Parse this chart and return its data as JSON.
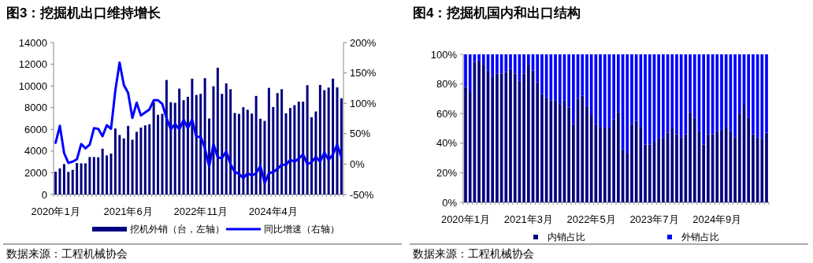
{
  "chart_data": [
    {
      "type": "bar",
      "title": "图3：挖掘机出口维持增长",
      "annotations": [
        "数据来源：工程机械协会"
      ],
      "categories": [
        "2020年1月",
        null,
        null,
        null,
        null,
        null,
        null,
        null,
        null,
        null,
        null,
        null,
        null,
        null,
        null,
        null,
        null,
        "2021年6月",
        null,
        null,
        null,
        null,
        null,
        null,
        null,
        null,
        null,
        null,
        null,
        null,
        null,
        null,
        null,
        null,
        "2022年11月",
        null,
        null,
        null,
        null,
        null,
        null,
        null,
        null,
        null,
        null,
        null,
        null,
        null,
        null,
        null,
        null,
        "2024年4月",
        null,
        null,
        null,
        null,
        null,
        null,
        null,
        null,
        null,
        null,
        null,
        null,
        null,
        null,
        null,
        null
      ],
      "series": [
        {
          "name": "挖机外销（台，左轴）",
          "color": "#000080",
          "values": [
            2100,
            2400,
            2800,
            2080,
            2270,
            2900,
            2870,
            2870,
            3450,
            3450,
            3430,
            4220,
            3600,
            3770,
            6080,
            5480,
            5170,
            6320,
            5050,
            5770,
            6160,
            6370,
            6470,
            8500,
            7340,
            7430,
            10550,
            8500,
            8450,
            9750,
            8690,
            9000,
            10670,
            9170,
            9270,
            10720,
            7000,
            9970,
            11680,
            9270,
            10240,
            9700,
            7510,
            7430,
            8040,
            7800,
            7460,
            9080,
            6980,
            6780,
            9820,
            8060,
            9340,
            9700,
            7480,
            7970,
            8230,
            8550,
            8550,
            10070,
            7120,
            7650,
            10090,
            9610,
            9850,
            10670,
            9870,
            8860
          ]
        },
        {
          "name": "同比增速（右轴）",
          "type": "line",
          "axis": "y2",
          "color": "#0000ff",
          "values": [
            35,
            63,
            18,
            2,
            4,
            8,
            33,
            26,
            32,
            59,
            58,
            46,
            64,
            58,
            121,
            167,
            130,
            117,
            76,
            101,
            80,
            85,
            90,
            105,
            105,
            99,
            76,
            57,
            66,
            57,
            73,
            59,
            73,
            45,
            45,
            26,
            -4,
            33,
            11,
            10,
            21,
            0,
            -13,
            -16,
            -23,
            -15,
            -19,
            -15,
            -3,
            -31,
            -15,
            -13,
            -8,
            -1,
            -1,
            7,
            4,
            9,
            16,
            0,
            3,
            12,
            4,
            19,
            7,
            16,
            32,
            11
          ]
        }
      ],
      "ylim": [
        0,
        14000
      ],
      "yticks": [
        0,
        2000,
        4000,
        6000,
        8000,
        10000,
        12000,
        14000
      ],
      "y2lim": [
        -50,
        200
      ],
      "y2ticks": [
        {
          "value": -50,
          "label": "-50%"
        },
        {
          "value": 0,
          "label": "0%"
        },
        {
          "value": 50,
          "label": "50%"
        },
        {
          "value": 100,
          "label": "100%"
        },
        {
          "value": 150,
          "label": "150%"
        },
        {
          "value": 200,
          "label": "200%"
        }
      ],
      "legend": "bottom",
      "marker": "none",
      "line_style": "solid"
    },
    {
      "type": "bar",
      "title": "图4：挖掘机国内和出口结构",
      "annotations": [
        "数据来源：工程机械协会"
      ],
      "stacked": true,
      "categories": [
        "2020年1月",
        null,
        null,
        null,
        null,
        null,
        null,
        null,
        null,
        null,
        null,
        null,
        null,
        null,
        "2021年3月",
        null,
        null,
        null,
        null,
        null,
        null,
        null,
        null,
        null,
        null,
        null,
        null,
        null,
        "2022年5月",
        null,
        null,
        null,
        null,
        null,
        null,
        null,
        null,
        null,
        null,
        null,
        null,
        null,
        "2023年7月",
        null,
        null,
        null,
        null,
        null,
        null,
        null,
        null,
        null,
        null,
        null,
        null,
        null,
        "2024年9月",
        null,
        null,
        null,
        null,
        null,
        null,
        null,
        null,
        null,
        null,
        null
      ],
      "series": [
        {
          "name": "内销占比",
          "color": "#000080",
          "values": [
            78,
            75,
            95,
            96,
            93,
            89,
            85,
            87,
            87,
            88,
            90,
            87,
            82,
            87,
            93,
            89,
            81,
            73,
            71,
            69,
            69,
            66,
            69,
            64,
            53,
            70,
            72,
            65,
            59,
            53,
            51,
            50,
            50,
            56,
            61,
            36,
            33,
            53,
            55,
            51,
            39,
            39,
            41,
            43,
            44,
            47,
            50,
            46,
            44,
            46,
            61,
            57,
            48,
            39,
            46,
            46,
            48,
            49,
            51,
            48,
            44,
            60,
            66,
            57,
            46,
            44,
            43,
            47
          ]
        },
        {
          "name": "外销占比",
          "color": "#0000ff",
          "values": [
            22,
            25,
            5,
            4,
            7,
            11,
            15,
            13,
            13,
            12,
            10,
            13,
            18,
            13,
            7,
            11,
            19,
            27,
            29,
            31,
            31,
            34,
            31,
            36,
            47,
            30,
            28,
            35,
            41,
            47,
            49,
            50,
            50,
            44,
            39,
            64,
            67,
            47,
            45,
            49,
            61,
            61,
            59,
            57,
            56,
            53,
            50,
            54,
            56,
            54,
            39,
            43,
            52,
            61,
            54,
            54,
            52,
            51,
            49,
            52,
            56,
            40,
            34,
            43,
            54,
            56,
            57,
            53
          ]
        }
      ],
      "ylim": [
        0,
        100
      ],
      "yticks": [
        {
          "value": 0,
          "label": "0%"
        },
        {
          "value": 20,
          "label": "20%"
        },
        {
          "value": 40,
          "label": "40%"
        },
        {
          "value": 60,
          "label": "60%"
        },
        {
          "value": 80,
          "label": "80%"
        },
        {
          "value": 100,
          "label": "100%"
        }
      ],
      "legend": "bottom"
    }
  ]
}
